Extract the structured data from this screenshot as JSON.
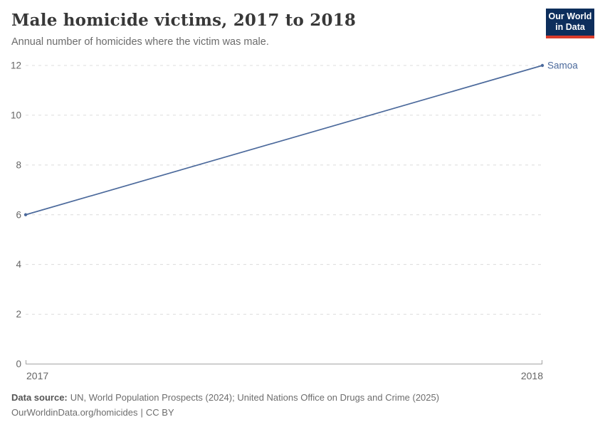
{
  "header": {
    "title": "Male homicide victims, 2017 to 2018",
    "subtitle": "Annual number of homicides where the victim was male.",
    "logo": {
      "line1": "Our World",
      "line2": "in Data"
    }
  },
  "chart_data": {
    "type": "line",
    "title": "Male homicide victims, 2017 to 2018",
    "x": [
      2017,
      2018
    ],
    "series": [
      {
        "name": "Samoa",
        "values": [
          6,
          12
        ],
        "color": "#4C6A9C"
      }
    ],
    "xticks": [
      2017,
      2018
    ],
    "yticks": [
      0,
      2,
      4,
      6,
      8,
      10,
      12
    ],
    "ylim": [
      0,
      12
    ],
    "xlabel": "",
    "ylabel": "",
    "grid": true,
    "gridline_style": "dashed",
    "legend_position": "end-of-line-label"
  },
  "footer": {
    "source_label": "Data source:",
    "source_text": "UN, World Population Prospects (2024); United Nations Office on Drugs and Crime (2025)",
    "link": "OurWorldinData.org/homicides",
    "separator": "|",
    "license": "CC BY"
  },
  "colors": {
    "series_blue": "#4C6A9C",
    "logo_navy": "#0d2e5c",
    "logo_red": "#d93b2b",
    "grid": "#dcdcdc",
    "axis": "#a3a3a3",
    "tick_text": "#666666",
    "title_text": "#383838"
  }
}
